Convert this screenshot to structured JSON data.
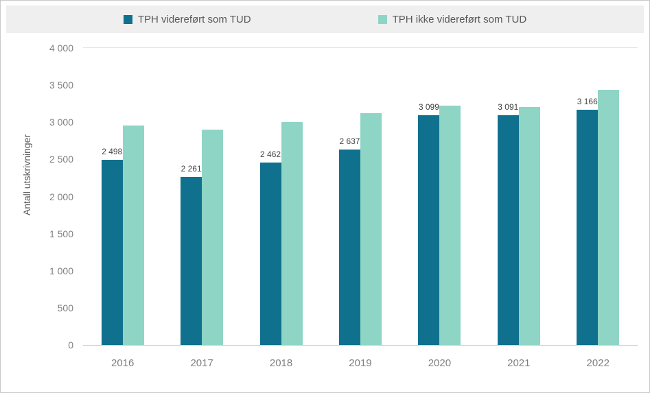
{
  "chart_data": {
    "type": "bar",
    "title": "",
    "ylabel": "Antall utskrivninger",
    "xlabel": "",
    "categories": [
      "2016",
      "2017",
      "2018",
      "2019",
      "2020",
      "2021",
      "2022"
    ],
    "series": [
      {
        "name": "TPH videreført som TUD",
        "color": "#10718e",
        "values": [
          2498,
          2261,
          2462,
          2637,
          3099,
          3091,
          3166
        ],
        "labels": [
          "2 498",
          "2 261",
          "2 462",
          "2 637",
          "3 099",
          "3 091",
          "3 166"
        ]
      },
      {
        "name": "TPH ikke videreført som TUD",
        "color": "#8fd5c6",
        "values": [
          2960,
          2900,
          3000,
          3120,
          3225,
          3205,
          3440
        ]
      }
    ],
    "ylim": [
      0,
      4000
    ],
    "yticks": [
      0,
      500,
      1000,
      1500,
      2000,
      2500,
      3000,
      3500,
      4000
    ],
    "ytick_labels": [
      "0",
      "500",
      "1 000",
      "1 500",
      "2 000",
      "2 500",
      "3 000",
      "3 500",
      "4 000"
    ],
    "grid": false,
    "legend_position": "top",
    "legend_background": "#efefef"
  }
}
